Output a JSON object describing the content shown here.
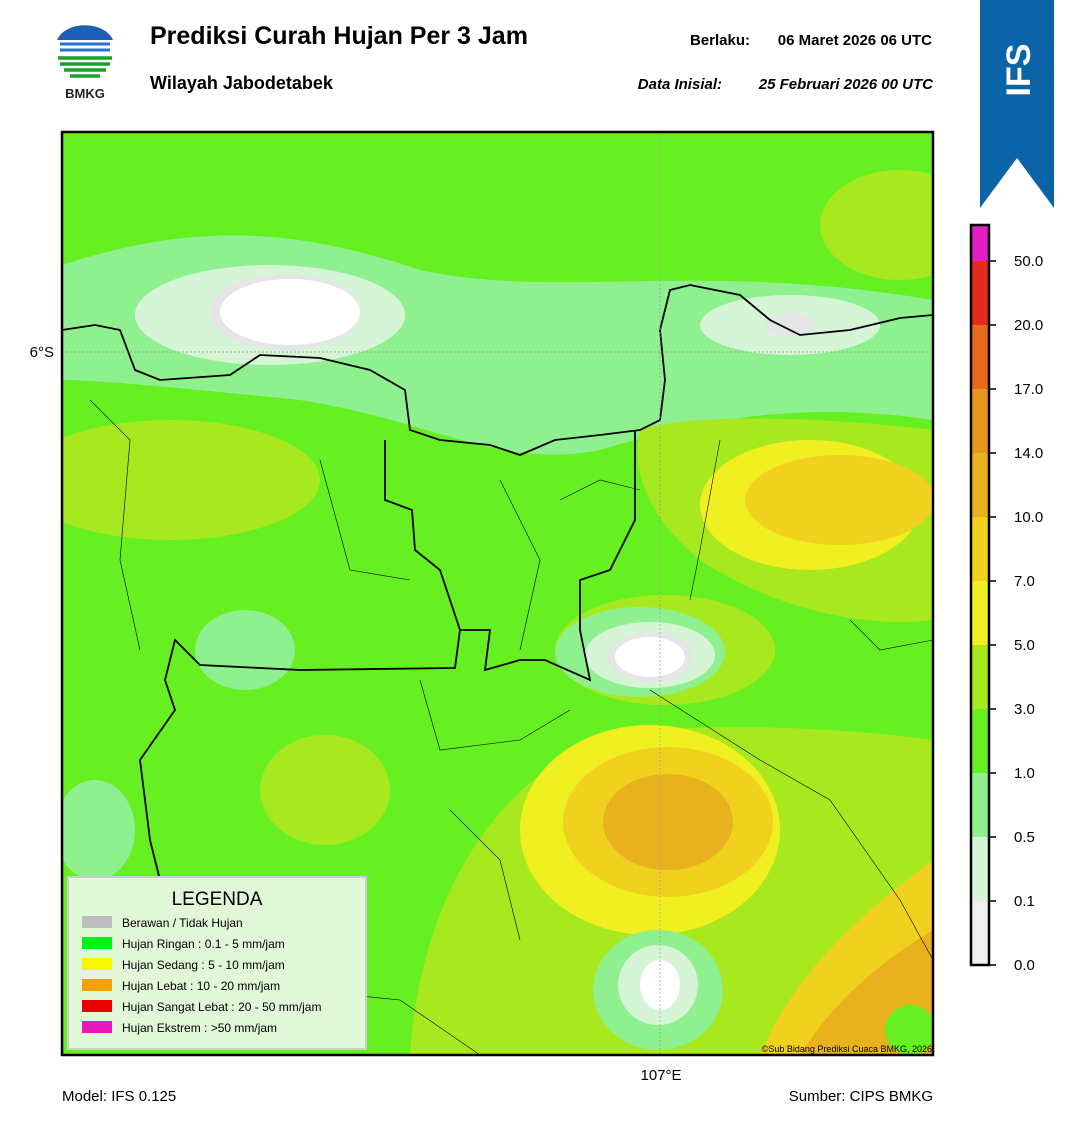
{
  "header": {
    "logo_text": "BMKG",
    "title": "Prediksi Curah Hujan Per 3 Jam",
    "subtitle": "Wilayah Jabodetabek",
    "valid_label": "Berlaku:",
    "valid_value": "06 Maret 2026 06 UTC",
    "init_label": "Data Inisial:",
    "init_value": "25 Februari 2026 00 UTC"
  },
  "badge": "IFS",
  "map": {
    "lat_label": "6°S",
    "lon_label": "107°E",
    "credit": "©Sub Bidang Prediksi Cuaca BMKG, 2026"
  },
  "legend": {
    "title": "LEGENDA",
    "items": [
      {
        "label": "Berawan / Tidak Hujan",
        "color": "#bdbdbd"
      },
      {
        "label": "Hujan Ringan : 0.1 - 5 mm/jam",
        "color": "#00f018"
      },
      {
        "label": "Hujan Sedang : 5 - 10 mm/jam",
        "color": "#f8f800"
      },
      {
        "label": "Hujan Lebat : 10 - 20 mm/jam",
        "color": "#f8a000"
      },
      {
        "label": "Hujan Sangat Lebat : 20 - 50 mm/jam",
        "color": "#e80000"
      },
      {
        "label": "Hujan Ekstrem : >50 mm/jam",
        "color": "#e818b8"
      }
    ]
  },
  "colorbar": {
    "labels": [
      "0.0",
      "0.1",
      "0.5",
      "1.0",
      "3.0",
      "5.0",
      "7.0",
      "10.0",
      "14.0",
      "17.0",
      "20.0",
      "50.0"
    ],
    "colors": [
      "#f0f0f0",
      "#d6f5d6",
      "#8ef08e",
      "#66f022",
      "#a8e81e",
      "#f0f020",
      "#f0d21e",
      "#e8b21e",
      "#e8961e",
      "#e86a1e",
      "#e82a1e",
      "#e020c0"
    ]
  },
  "footer": {
    "model": "Model: IFS 0.125",
    "source": "Sumber: CIPS BMKG"
  }
}
